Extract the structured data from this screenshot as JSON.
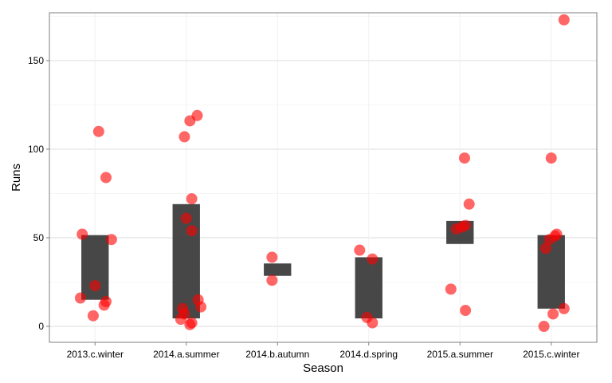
{
  "chart_data": {
    "type": "scatter",
    "title": "",
    "xlabel": "Season",
    "ylabel": "Runs",
    "ylim": [
      -9,
      177
    ],
    "y_ticks": [
      0,
      50,
      100,
      150
    ],
    "y_tick_labels": [
      "0",
      "50",
      "100",
      "150"
    ],
    "grid": true,
    "categories": [
      "2013.c.winter",
      "2014.a.summer",
      "2014.b.autumn",
      "2014.d.spring",
      "2015.a.summer",
      "2015.c.winter"
    ],
    "boxes": [
      {
        "category": "2013.c.winter",
        "lower": 15,
        "upper": 51.5
      },
      {
        "category": "2014.a.summer",
        "lower": 4.5,
        "upper": 69
      },
      {
        "category": "2014.b.autumn",
        "lower": 28.5,
        "upper": 35.5
      },
      {
        "category": "2014.d.spring",
        "lower": 4.5,
        "upper": 39
      },
      {
        "category": "2015.a.summer",
        "lower": 46.5,
        "upper": 59.5
      },
      {
        "category": "2015.c.winter",
        "lower": 10,
        "upper": 51.5
      }
    ],
    "points": [
      {
        "category": "2013.c.winter",
        "jitter": 0.04,
        "y": 110
      },
      {
        "category": "2013.c.winter",
        "jitter": 0.12,
        "y": 84
      },
      {
        "category": "2013.c.winter",
        "jitter": -0.14,
        "y": 52
      },
      {
        "category": "2013.c.winter",
        "jitter": 0.18,
        "y": 49
      },
      {
        "category": "2013.c.winter",
        "jitter": 0.0,
        "y": 23
      },
      {
        "category": "2013.c.winter",
        "jitter": -0.16,
        "y": 16
      },
      {
        "category": "2013.c.winter",
        "jitter": 0.12,
        "y": 14
      },
      {
        "category": "2013.c.winter",
        "jitter": 0.1,
        "y": 12
      },
      {
        "category": "2013.c.winter",
        "jitter": -0.02,
        "y": 6
      },
      {
        "category": "2014.a.summer",
        "jitter": 0.12,
        "y": 119
      },
      {
        "category": "2014.a.summer",
        "jitter": 0.04,
        "y": 116
      },
      {
        "category": "2014.a.summer",
        "jitter": -0.02,
        "y": 107
      },
      {
        "category": "2014.a.summer",
        "jitter": 0.06,
        "y": 72
      },
      {
        "category": "2014.a.summer",
        "jitter": 0.0,
        "y": 61
      },
      {
        "category": "2014.a.summer",
        "jitter": 0.06,
        "y": 54
      },
      {
        "category": "2014.a.summer",
        "jitter": 0.13,
        "y": 15
      },
      {
        "category": "2014.a.summer",
        "jitter": 0.16,
        "y": 11
      },
      {
        "category": "2014.a.summer",
        "jitter": -0.04,
        "y": 10
      },
      {
        "category": "2014.a.summer",
        "jitter": -0.02,
        "y": 7
      },
      {
        "category": "2014.a.summer",
        "jitter": -0.06,
        "y": 4
      },
      {
        "category": "2014.a.summer",
        "jitter": 0.06,
        "y": 2
      },
      {
        "category": "2014.a.summer",
        "jitter": 0.04,
        "y": 1
      },
      {
        "category": "2014.b.autumn",
        "jitter": -0.06,
        "y": 39
      },
      {
        "category": "2014.b.autumn",
        "jitter": -0.06,
        "y": 26
      },
      {
        "category": "2014.d.spring",
        "jitter": -0.1,
        "y": 43
      },
      {
        "category": "2014.d.spring",
        "jitter": 0.04,
        "y": 38
      },
      {
        "category": "2014.d.spring",
        "jitter": -0.02,
        "y": 5
      },
      {
        "category": "2014.d.spring",
        "jitter": 0.04,
        "y": 2
      },
      {
        "category": "2015.a.summer",
        "jitter": 0.05,
        "y": 95
      },
      {
        "category": "2015.a.summer",
        "jitter": 0.1,
        "y": 69
      },
      {
        "category": "2015.a.summer",
        "jitter": 0.06,
        "y": 57
      },
      {
        "category": "2015.a.summer",
        "jitter": 0.02,
        "y": 56
      },
      {
        "category": "2015.a.summer",
        "jitter": -0.04,
        "y": 55
      },
      {
        "category": "2015.a.summer",
        "jitter": -0.1,
        "y": 21
      },
      {
        "category": "2015.a.summer",
        "jitter": 0.06,
        "y": 9
      },
      {
        "category": "2015.c.winter",
        "jitter": 0.14,
        "y": 173
      },
      {
        "category": "2015.c.winter",
        "jitter": 0.0,
        "y": 95
      },
      {
        "category": "2015.c.winter",
        "jitter": 0.06,
        "y": 52
      },
      {
        "category": "2015.c.winter",
        "jitter": 0.04,
        "y": 51
      },
      {
        "category": "2015.c.winter",
        "jitter": -0.02,
        "y": 49
      },
      {
        "category": "2015.c.winter",
        "jitter": -0.06,
        "y": 44
      },
      {
        "category": "2015.c.winter",
        "jitter": 0.14,
        "y": 10
      },
      {
        "category": "2015.c.winter",
        "jitter": 0.02,
        "y": 7
      },
      {
        "category": "2015.c.winter",
        "jitter": -0.08,
        "y": 0
      }
    ],
    "colors": {
      "points": "#ff0000",
      "boxes": "#333333",
      "grid_major": "#dddddd",
      "grid_minor": "#f0f0f0",
      "panel_border": "#7f7f7f",
      "background": "#ffffff"
    }
  }
}
